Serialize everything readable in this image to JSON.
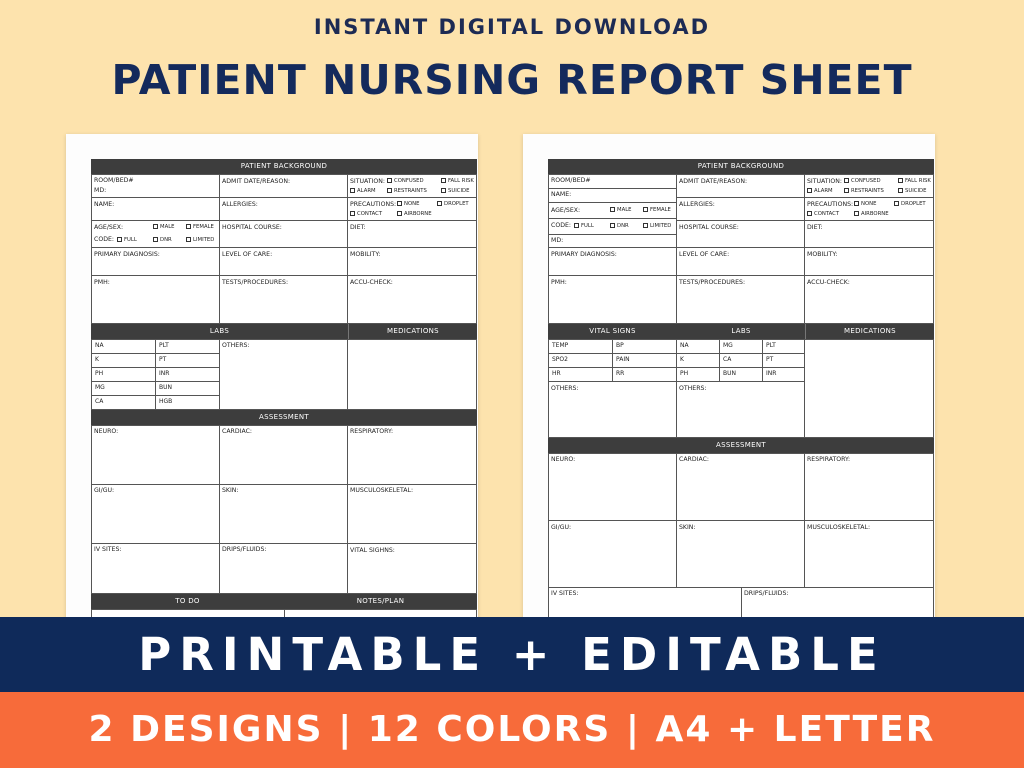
{
  "header": {
    "subtitle": "INSTANT DIGITAL DOWNLOAD",
    "title": "PATIENT NURSING REPORT SHEET"
  },
  "sheet1": {
    "background_header": "PATIENT BACKGROUND",
    "room_bed": "ROOM/BED#",
    "md": "MD:",
    "admit": "ADMIT DATE/REASON:",
    "situation": "SITUATION:",
    "confused": "CONFUSED",
    "fall_risk": "FALL RISK",
    "alarm": "ALARM",
    "restraints": "RESTRAINTS",
    "suicide": "SUICIDE",
    "name": "NAME:",
    "allergies": "ALLERGIES:",
    "precautions": "PRECAUTIONS:",
    "none": "NONE",
    "droplet": "DROPLET",
    "contact": "CONTACT",
    "airborne": "AIRBORNE",
    "age_sex": "AGE/SEX:",
    "male": "MALE",
    "female": "FEMALE",
    "code": "CODE:",
    "full": "FULL",
    "dnr": "DNR",
    "limited": "LIMITED",
    "hospital_course": "HOSPITAL COURSE:",
    "diet": "DIET:",
    "primary_dx": "PRIMARY DIAGNOSIS:",
    "level_of_care": "LEVEL OF CARE:",
    "mobility": "MOBILITY:",
    "pmh": "PMH:",
    "tests": "TESTS/PROCEDURES:",
    "accu": "ACCU-CHECK:",
    "labs_header": "LABS",
    "meds_header": "MEDICATIONS",
    "labs_left": [
      "NA",
      "K",
      "PH",
      "MG",
      "CA"
    ],
    "labs_right": [
      "PLT",
      "PT",
      "INR",
      "BUN",
      "HGB"
    ],
    "others": "OTHERS:",
    "assessment_header": "ASSESSMENT",
    "neuro": "NEURO:",
    "cardiac": "CARDIAC:",
    "respiratory": "RESPIRATORY:",
    "gigu": "GI/GU:",
    "skin": "SKIN:",
    "musculo": "MUSCULOSKELETAL:",
    "iv_sites": "IV SITES:",
    "drips": "DRIPS/FLUIDS:",
    "vital_signs": "VITAL SIGHNS:",
    "todo_header": "TO DO",
    "notes_header": "NOTES/PLAN"
  },
  "sheet2": {
    "background_header": "PATIENT BACKGROUND",
    "room_bed": "ROOM/BED#",
    "name": "NAME:",
    "age_sex": "AGE/SEX:",
    "male": "MALE",
    "female": "FEMALE",
    "code": "CODE:",
    "full": "FULL",
    "dnr": "DNR",
    "limited": "LIMITED",
    "md": "MD:",
    "admit": "ADMIT DATE/REASON:",
    "situation": "SITUATION:",
    "confused": "CONFUSED",
    "fall_risk": "FALL RISK",
    "alarm": "ALARM",
    "restraints": "RESTRAINTS",
    "suicide": "SUICIDE",
    "allergies": "ALLERGIES:",
    "precautions": "PRECAUTIONS:",
    "none": "NONE",
    "droplet": "DROPLET",
    "contact": "CONTACT",
    "airborne": "AIRBORNE",
    "hospital_course": "HOSPITAL COURSE:",
    "diet": "DIET:",
    "primary_dx": "PRIMARY DIAGNOSIS:",
    "level_of_care": "LEVEL OF CARE:",
    "mobility": "MOBILITY:",
    "pmh": "PMH:",
    "tests": "TESTS/PROCEDURES:",
    "accu": "ACCU-CHECK:",
    "vitals_header": "VITAL SIGNS",
    "labs_header": "LABS",
    "meds_header": "MEDICATIONS",
    "vitals_left": [
      "TEMP",
      "SPO2",
      "HR"
    ],
    "vitals_right": [
      "BP",
      "PAIN",
      "RR"
    ],
    "labs_a": [
      "NA",
      "K",
      "PH"
    ],
    "labs_b": [
      "MG",
      "CA",
      "BUN"
    ],
    "labs_c": [
      "PLT",
      "PT",
      "INR"
    ],
    "others": "OTHERS:",
    "assessment_header": "ASSESSMENT",
    "neuro": "NEURO:",
    "cardiac": "CARDIAC:",
    "respiratory": "RESPIRATORY:",
    "gigu": "GI/GU:",
    "skin": "SKIN:",
    "musculo": "MUSCULOSKELETAL:",
    "iv_sites": "IV SITES:",
    "drips": "DRIPS/FLUIDS:"
  },
  "banner_main": "PRINTABLE + EDITABLE",
  "banner_sub": "2 DESIGNS | 12 COLORS | A4 + LETTER",
  "colors": {
    "background": "#fde3ad",
    "navy": "#0f2a5a",
    "orange": "#f76b3a",
    "header_bar": "#3d3d3d"
  }
}
